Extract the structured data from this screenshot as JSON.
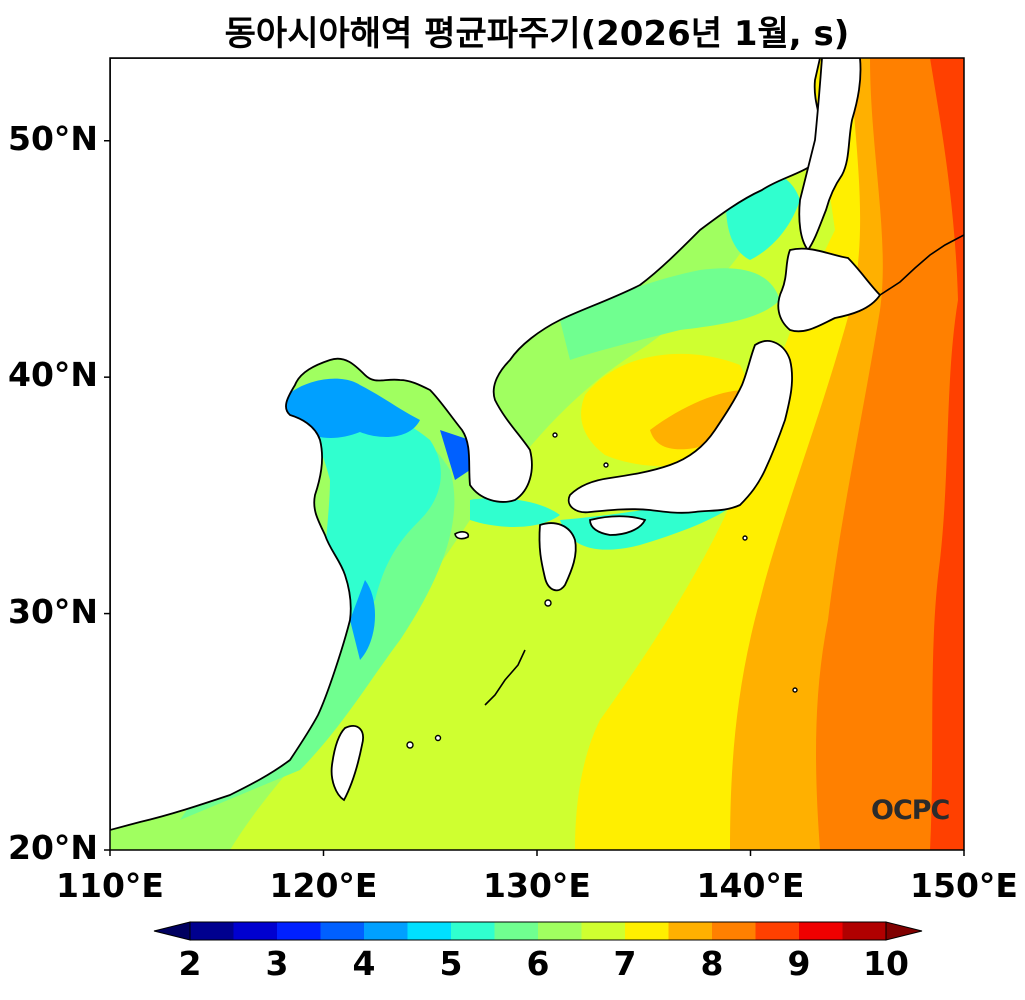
{
  "title": "동아시아해역 평균파주기(2026년 1월, s)",
  "logo": "OCPC",
  "map": {
    "lon_range": [
      110,
      150
    ],
    "lat_range": [
      20,
      53.5
    ],
    "lon_ticks": [
      {
        "value": 110,
        "label": "110°E"
      },
      {
        "value": 120,
        "label": "120°E"
      },
      {
        "value": 130,
        "label": "130°E"
      },
      {
        "value": 140,
        "label": "140°E"
      },
      {
        "value": 150,
        "label": "150°E"
      }
    ],
    "lat_ticks": [
      {
        "value": 20,
        "label": "20°N"
      },
      {
        "value": 30,
        "label": "30°N"
      },
      {
        "value": 40,
        "label": "40°N"
      },
      {
        "value": 50,
        "label": "50°N"
      }
    ]
  },
  "colorbar": {
    "unit": "s",
    "min": 2,
    "max": 10,
    "step": 0.5,
    "labels": [
      "2",
      "3",
      "4",
      "5",
      "6",
      "7",
      "8",
      "9",
      "10"
    ],
    "colors": [
      "#00008f",
      "#0000d0",
      "#0020ff",
      "#0060ff",
      "#00a0ff",
      "#00dfff",
      "#30ffcf",
      "#70ff90",
      "#a0ff60",
      "#cfff30",
      "#ffef00",
      "#ffb000",
      "#ff8000",
      "#ff4000",
      "#ef0000",
      "#b00000"
    ],
    "under_color": "#000060",
    "over_color": "#800000"
  },
  "land_color": "#ffffff",
  "coast_color": "#000000"
}
